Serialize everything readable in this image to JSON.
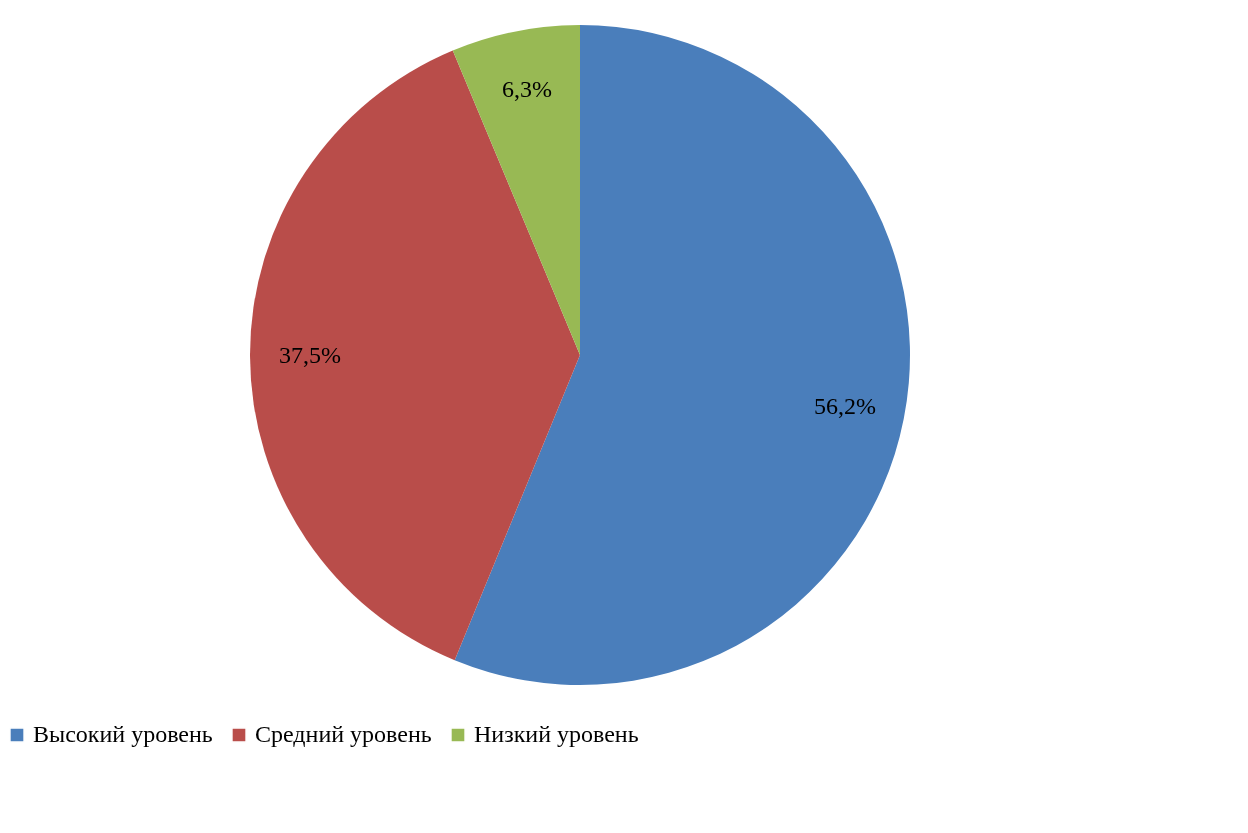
{
  "chart_data": {
    "type": "pie",
    "categories": [
      "Высокий уровень",
      "Средний уровень",
      "Низкий уровень"
    ],
    "values": [
      56.2,
      37.5,
      6.3
    ],
    "colors": [
      "#4a7ebb",
      "#b94d4a",
      "#98b954"
    ],
    "value_labels": [
      "56,2%",
      "37,5%",
      "6,3%"
    ],
    "legend": "bottom"
  }
}
